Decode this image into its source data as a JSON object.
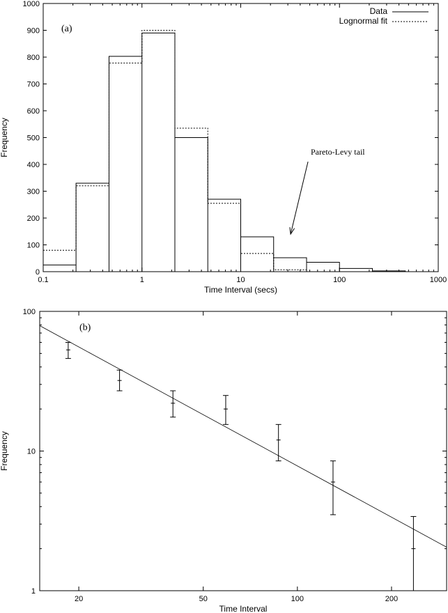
{
  "chart_data": [
    {
      "type": "histogram",
      "panel_label": "(a)",
      "xlabel": "Time Interval (secs)",
      "ylabel": "Frequency",
      "x_scale": "log",
      "xlim": [
        0.1,
        1000
      ],
      "ylim": [
        0,
        1000
      ],
      "x_ticks": [
        {
          "value": 0.1,
          "label": "0.1"
        },
        {
          "value": 1,
          "label": "1"
        },
        {
          "value": 10,
          "label": "10"
        },
        {
          "value": 100,
          "label": "100"
        },
        {
          "value": 1000,
          "label": "1000"
        }
      ],
      "y_ticks": [
        0,
        100,
        200,
        300,
        400,
        500,
        600,
        700,
        800,
        900,
        1000
      ],
      "bin_edges": [
        0.1,
        0.215,
        0.464,
        1.0,
        2.154,
        4.642,
        10.0,
        21.54,
        46.42,
        100.0,
        215.4,
        464.2,
        1000
      ],
      "series": [
        {
          "name": "Data",
          "style": "solid",
          "values": [
            25,
            330,
            803,
            890,
            500,
            270,
            130,
            52,
            35,
            12,
            3,
            0
          ]
        },
        {
          "name": "Lognormal fit",
          "style": "dashed",
          "values": [
            80,
            320,
            778,
            900,
            535,
            255,
            68,
            7,
            0,
            0,
            0,
            0
          ]
        }
      ],
      "legend": {
        "placement": "top-right",
        "entries": [
          "Data",
          "Lognormal fit"
        ]
      },
      "annotation": {
        "text": "Pareto-Levy tail",
        "arrow_from": [
          48,
          410
        ],
        "arrow_to": [
          32,
          140
        ]
      }
    },
    {
      "type": "scatter",
      "panel_label": "(b)",
      "xlabel": "Time Interval",
      "ylabel": "Frequency",
      "x_scale": "log",
      "y_scale": "log",
      "xlim": [
        15,
        300
      ],
      "ylim": [
        1,
        100
      ],
      "x_ticks": [
        {
          "value": 20,
          "label": "20"
        },
        {
          "value": 50,
          "label": "50"
        },
        {
          "value": 100,
          "label": "100"
        },
        {
          "value": 200,
          "label": "200"
        }
      ],
      "y_ticks": [
        {
          "value": 1,
          "label": "1"
        },
        {
          "value": 10,
          "label": "10"
        },
        {
          "value": 100,
          "label": "100"
        }
      ],
      "points": [
        {
          "x": 18.5,
          "y": 53,
          "y_low": 46,
          "y_high": 60
        },
        {
          "x": 27,
          "y": 32,
          "y_low": 27,
          "y_high": 38
        },
        {
          "x": 40,
          "y": 22,
          "y_low": 17.5,
          "y_high": 27
        },
        {
          "x": 59,
          "y": 20,
          "y_low": 15.5,
          "y_high": 25
        },
        {
          "x": 87,
          "y": 12,
          "y_low": 8.5,
          "y_high": 15.5
        },
        {
          "x": 130,
          "y": 6,
          "y_low": 3.5,
          "y_high": 8.5
        },
        {
          "x": 235,
          "y": 2,
          "y_low": 1,
          "y_high": 3.4
        }
      ],
      "fit_line": [
        {
          "x": 15,
          "y": 79
        },
        {
          "x": 300,
          "y": 2.05
        }
      ]
    }
  ]
}
